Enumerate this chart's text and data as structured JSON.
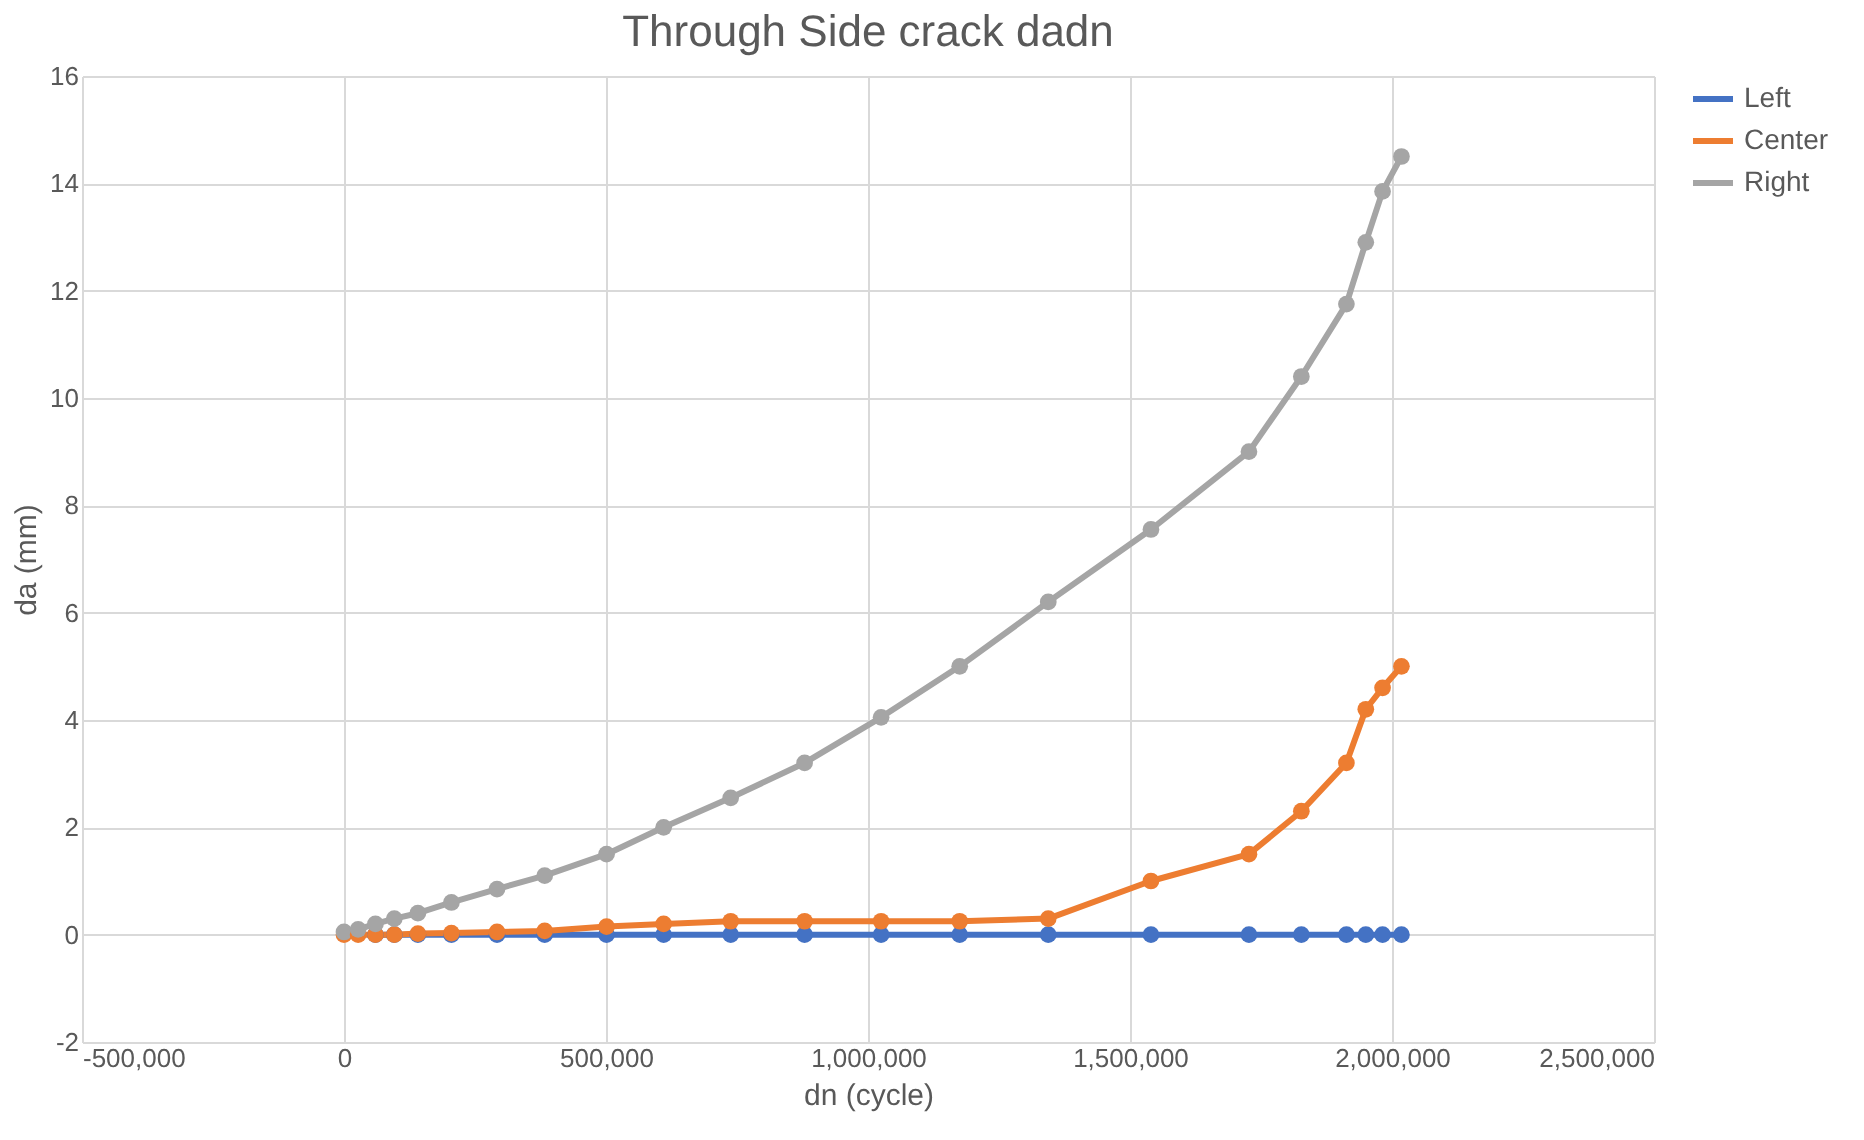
{
  "chart_data": {
    "type": "line",
    "title": "Through Side crack dadn",
    "xlabel": "dn (cycle)",
    "ylabel": "da (mm)",
    "x": [
      0,
      27000,
      60000,
      96000,
      141000,
      205000,
      292000,
      383000,
      501000,
      610000,
      738000,
      879000,
      1025000,
      1175000,
      1344000,
      1540000,
      1727000,
      1827000,
      1913000,
      1950000,
      1982000,
      2018000
    ],
    "series": [
      {
        "name": "Left",
        "color": "#4472c4",
        "values": [
          null,
          null,
          0,
          0,
          0,
          0,
          0,
          0,
          0,
          0,
          0,
          0,
          0,
          0,
          0,
          0,
          0,
          0,
          0,
          0,
          0,
          0
        ]
      },
      {
        "name": "Center",
        "color": "#ed7d31",
        "values": [
          0,
          0,
          0,
          0,
          0.02,
          0.03,
          0.05,
          0.07,
          0.15,
          0.2,
          0.25,
          0.25,
          0.25,
          0.25,
          0.3,
          1.0,
          1.5,
          2.3,
          3.2,
          4.2,
          4.6,
          5.0
        ]
      },
      {
        "name": "Right",
        "color": "#a5a5a5",
        "values": [
          0.05,
          0.1,
          0.2,
          0.3,
          0.4,
          0.6,
          0.85,
          1.1,
          1.5,
          2.0,
          2.55,
          3.2,
          4.05,
          5.0,
          6.2,
          7.55,
          9.0,
          10.4,
          11.75,
          12.9,
          13.85,
          14.5
        ]
      }
    ],
    "xlim": [
      -500000,
      2500000
    ],
    "xticks": [
      {
        "value": -500000,
        "label": "-500,000"
      },
      0,
      {
        "value": 500000,
        "label": "500,000"
      },
      {
        "value": 1000000,
        "label": "1,000,000"
      },
      {
        "value": 1500000,
        "label": "1,500,000"
      },
      {
        "value": 2000000,
        "label": "2,000,000"
      },
      {
        "value": 2500000,
        "label": "2,500,000"
      }
    ],
    "ylim": [
      -2,
      16
    ],
    "yticks": [
      {
        "value": -2,
        "label": "-2"
      },
      0,
      2,
      4,
      6,
      8,
      10,
      12,
      14,
      16
    ],
    "grid": true,
    "legend": "right",
    "marker": "circle",
    "line_style": "solid"
  }
}
